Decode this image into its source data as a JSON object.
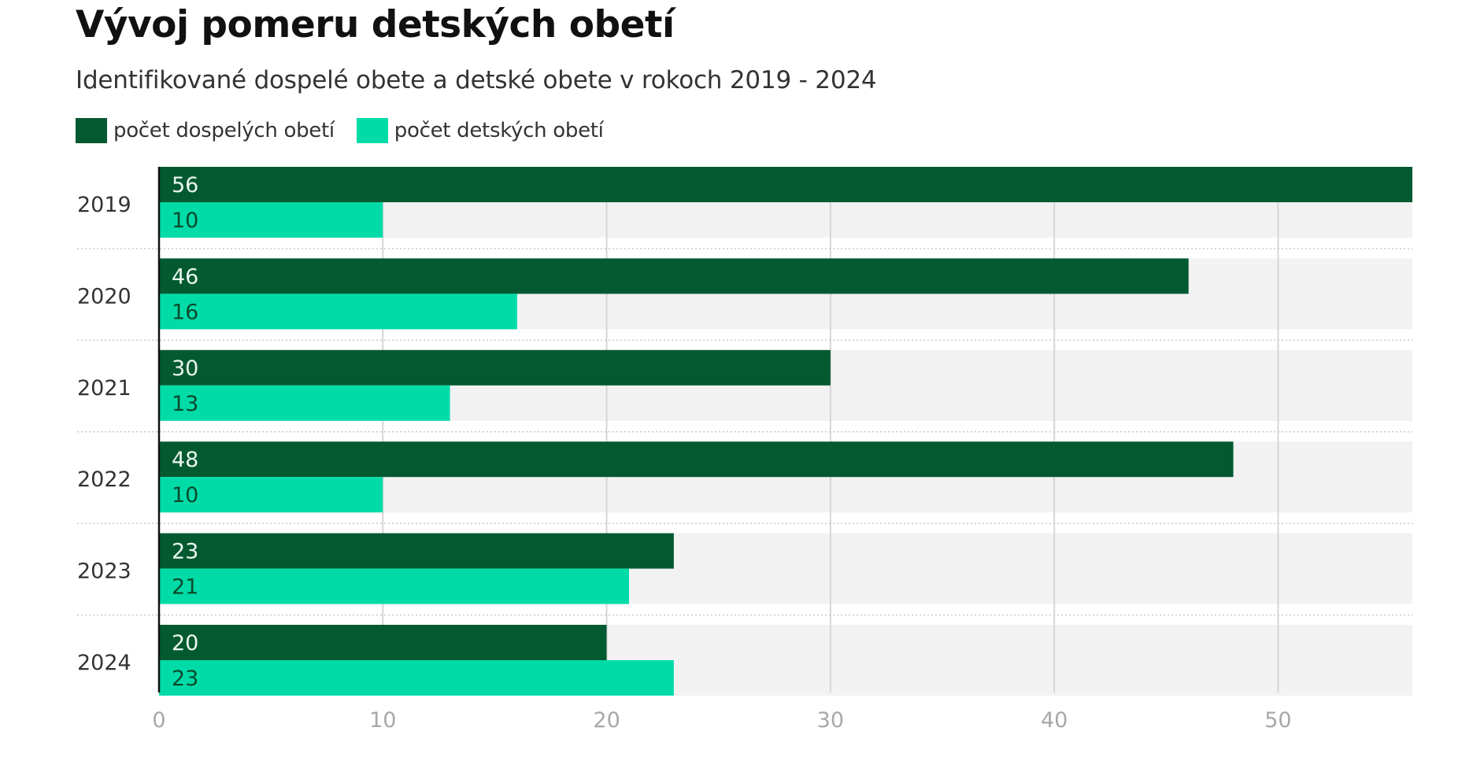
{
  "chart_data": {
    "type": "bar",
    "orientation": "horizontal",
    "title": "Vývoj pomeru detských obetí",
    "subtitle": "Identifikované dospelé obete a detské obete v rokoch 2019 - 2024",
    "categories": [
      "2019",
      "2020",
      "2021",
      "2022",
      "2023",
      "2024"
    ],
    "series": [
      {
        "name": "počet dospelých obetí",
        "color": "#035a31",
        "label_color": "#eaf6ef",
        "values": [
          56,
          46,
          30,
          48,
          23,
          20
        ]
      },
      {
        "name": "počet detských obetí",
        "color": "#00dba8",
        "label_color": "#0b4a2c",
        "values": [
          10,
          16,
          13,
          10,
          21,
          23
        ]
      }
    ],
    "xlim": [
      0,
      56
    ],
    "xticks": [
      0,
      10,
      20,
      30,
      40,
      50
    ],
    "xtick_labels": [
      "0",
      "10",
      "20",
      "30",
      "40",
      "50"
    ],
    "xlabel": "",
    "ylabel": "",
    "grid": true,
    "legend_position": "top-left",
    "row_background": "#f2f2f2",
    "gridline_color": "#d6d6d6"
  }
}
